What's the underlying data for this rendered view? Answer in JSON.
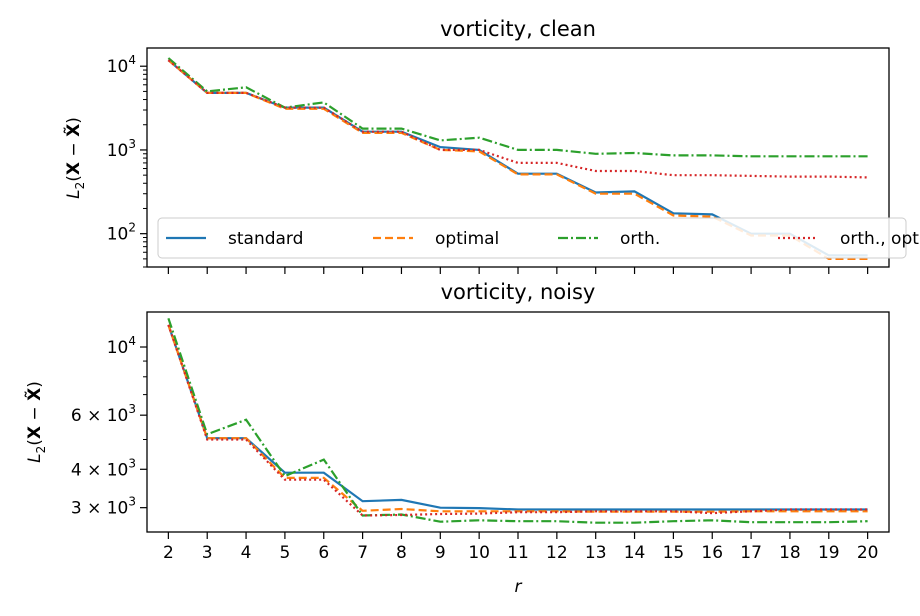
{
  "chart_data": [
    {
      "type": "line",
      "title": "vorticity, clean",
      "ylabel": "L2(X − X̃)",
      "ylabel_parts": {
        "L": "L",
        "sub": "2",
        "open": "(",
        "X": "X",
        "minus": " − ",
        "Xt": "X̃",
        "close": ")"
      },
      "xlabel": "",
      "yscale": "log",
      "ylim": [
        40,
        16500
      ],
      "yticks": [
        {
          "value": 100,
          "mant": "",
          "base": "10",
          "exp": "2"
        },
        {
          "value": 1000,
          "mant": "",
          "base": "10",
          "exp": "3"
        },
        {
          "value": 10000,
          "mant": "",
          "base": "10",
          "exp": "4"
        }
      ],
      "x": [
        2,
        3,
        4,
        5,
        6,
        7,
        8,
        9,
        10,
        11,
        12,
        13,
        14,
        15,
        16,
        17,
        18,
        19,
        20
      ],
      "xlim": [
        1.45,
        20.55
      ],
      "legend": {
        "placement": "bottom",
        "columns": 4
      },
      "series": [
        {
          "name": "standard",
          "color": "#1f77b4",
          "dash": "",
          "values": [
            11800,
            4800,
            4800,
            3200,
            3200,
            1650,
            1650,
            1080,
            1000,
            520,
            520,
            310,
            320,
            175,
            170,
            100,
            100,
            55,
            55
          ]
        },
        {
          "name": "optimal",
          "color": "#ff7f0e",
          "dash": "8,4",
          "values": [
            11800,
            4800,
            4800,
            3100,
            3100,
            1600,
            1600,
            1000,
            960,
            510,
            510,
            300,
            300,
            165,
            160,
            95,
            95,
            50,
            50
          ]
        },
        {
          "name": "orth.",
          "color": "#2ca02c",
          "dash": "10,3,2,3",
          "values": [
            12500,
            5000,
            5600,
            3200,
            3700,
            1800,
            1800,
            1300,
            1400,
            1000,
            1000,
            900,
            920,
            860,
            860,
            840,
            840,
            840,
            840
          ]
        },
        {
          "name": "orth., opt.",
          "color": "#d62728",
          "dash": "2,3",
          "values": [
            11800,
            4800,
            4800,
            3200,
            3200,
            1650,
            1650,
            1000,
            1000,
            700,
            700,
            560,
            560,
            500,
            500,
            490,
            480,
            480,
            470
          ]
        }
      ]
    },
    {
      "type": "line",
      "title": "vorticity, noisy",
      "ylabel": "L2(X − X̃)",
      "ylabel_parts": {
        "L": "L",
        "sub": "2",
        "open": "(",
        "X": "X",
        "minus": " − ",
        "Xt": "X̃",
        "close": ")"
      },
      "xlabel": "r",
      "yscale": "log",
      "ylim": [
        2500,
        13000
      ],
      "yticks": [
        {
          "value": 3000,
          "mant": "3 × ",
          "base": "10",
          "exp": "3"
        },
        {
          "value": 4000,
          "mant": "4 × ",
          "base": "10",
          "exp": "3"
        },
        {
          "value": 6000,
          "mant": "6 × ",
          "base": "10",
          "exp": "3"
        },
        {
          "value": 10000,
          "mant": "",
          "base": "10",
          "exp": "4"
        }
      ],
      "x": [
        2,
        3,
        4,
        5,
        6,
        7,
        8,
        9,
        10,
        11,
        12,
        13,
        14,
        15,
        16,
        17,
        18,
        19,
        20
      ],
      "xtick_labels": [
        "2",
        "3",
        "4",
        "5",
        "6",
        "7",
        "8",
        "9",
        "10",
        "11",
        "12",
        "13",
        "14",
        "15",
        "16",
        "17",
        "18",
        "19",
        "20"
      ],
      "xlim": [
        1.45,
        20.55
      ],
      "series": [
        {
          "name": "standard",
          "color": "#1f77b4",
          "dash": "",
          "values": [
            11800,
            5050,
            5050,
            3900,
            3900,
            3150,
            3180,
            3000,
            2990,
            2960,
            2960,
            2960,
            2960,
            2960,
            2960,
            2960,
            2960,
            2960,
            2960
          ]
        },
        {
          "name": "optimal",
          "color": "#ff7f0e",
          "dash": "8,4",
          "values": [
            11800,
            5050,
            5050,
            3750,
            3750,
            2930,
            2970,
            2920,
            2920,
            2920,
            2920,
            2910,
            2910,
            2910,
            2910,
            2920,
            2920,
            2920,
            2920
          ]
        },
        {
          "name": "orth.",
          "color": "#2ca02c",
          "dash": "10,3,2,3",
          "values": [
            12400,
            5200,
            5800,
            3800,
            4300,
            2830,
            2850,
            2700,
            2730,
            2710,
            2710,
            2680,
            2680,
            2710,
            2730,
            2690,
            2690,
            2690,
            2710
          ]
        },
        {
          "name": "orth., opt.",
          "color": "#d62728",
          "dash": "2,3",
          "values": [
            11800,
            5000,
            5000,
            3700,
            3700,
            2830,
            2840,
            2860,
            2870,
            2900,
            2900,
            2920,
            2920,
            2920,
            2880,
            2920,
            2960,
            2960,
            2960
          ]
        }
      ]
    }
  ]
}
